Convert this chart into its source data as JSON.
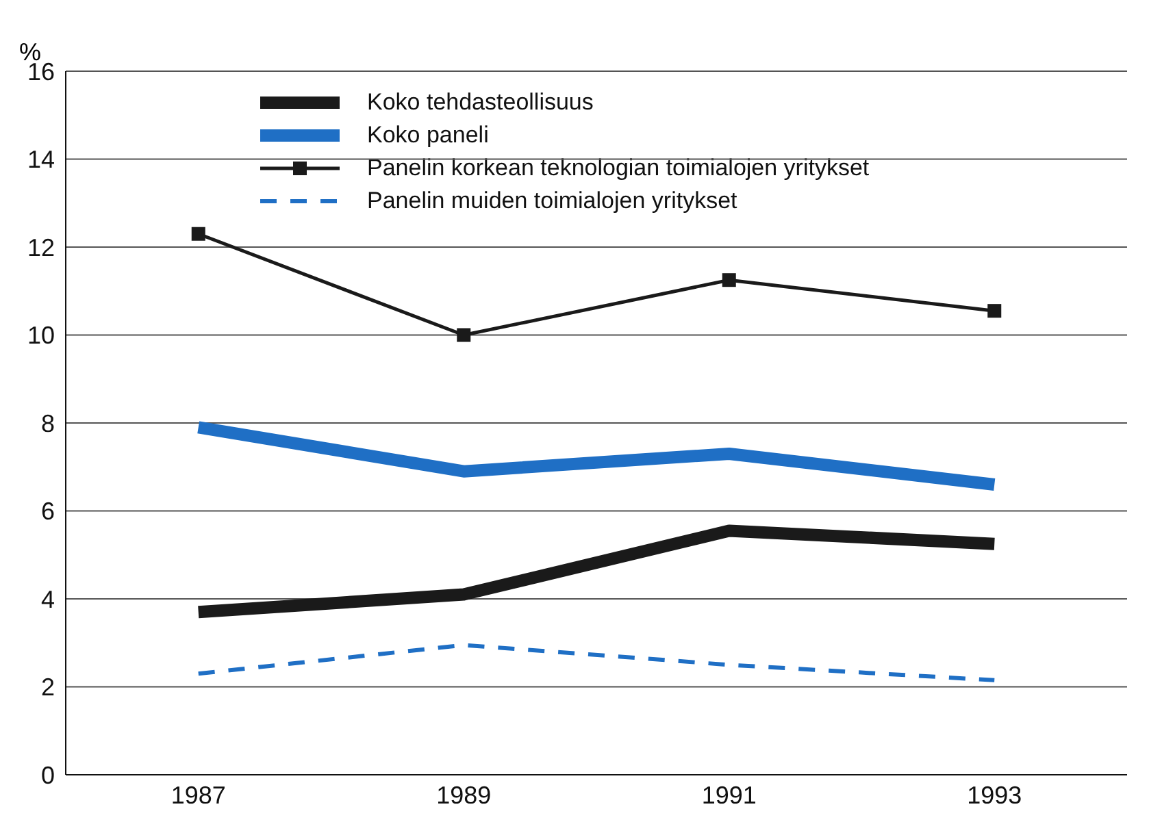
{
  "chart_data": {
    "type": "line",
    "ylabel": "%",
    "x": [
      1987,
      1989,
      1991,
      1993
    ],
    "xlim": [
      1986,
      1994
    ],
    "xticks": [
      1987,
      1989,
      1991,
      1993
    ],
    "ylim": [
      0,
      16
    ],
    "yticks": [
      0,
      2,
      4,
      6,
      8,
      10,
      12,
      14,
      16
    ],
    "grid": "y",
    "legend": "top",
    "series": [
      {
        "name": "Koko tehdasteollisuus",
        "color": "#1a1a1a",
        "values": [
          3.7,
          4.1,
          5.55,
          5.25
        ],
        "marker": "none",
        "line_style": "solid"
      },
      {
        "name": "Koko paneli",
        "color": "#1f6fc5",
        "values": [
          7.9,
          6.9,
          7.3,
          6.6
        ],
        "marker": "none",
        "line_style": "solid"
      },
      {
        "name": "Panelin korkean teknologian toimialojen yritykset",
        "color": "#1a1a1a",
        "values": [
          12.3,
          10.0,
          11.25,
          10.55
        ],
        "marker": "square",
        "line_style": "solid"
      },
      {
        "name": "Panelin muiden toimialojen yritykset",
        "color": "#1f6fc5",
        "values": [
          2.3,
          2.95,
          2.5,
          2.15
        ],
        "marker": "none",
        "line_style": "dashed"
      }
    ]
  }
}
